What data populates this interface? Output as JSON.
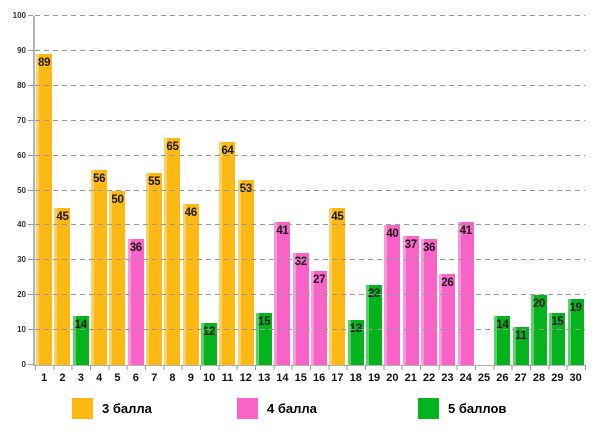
{
  "chart_data": {
    "type": "bar",
    "title": "",
    "xlabel": "",
    "ylabel": "",
    "ylim": [
      0,
      100
    ],
    "ytick_step": 10,
    "grid": "horizontal-dashed",
    "legend_position": "bottom",
    "legend": [
      {
        "key": "3",
        "label": "3 балла",
        "color": "#FCB813"
      },
      {
        "key": "4",
        "label": "4 балла",
        "color": "#F962C6"
      },
      {
        "key": "5",
        "label": "5 баллов",
        "color": "#05B41C"
      }
    ],
    "categories": [
      "1",
      "2",
      "3",
      "4",
      "5",
      "6",
      "7",
      "8",
      "9",
      "10",
      "11",
      "12",
      "13",
      "14",
      "15",
      "16",
      "17",
      "18",
      "19",
      "20",
      "21",
      "22",
      "23",
      "24",
      "25",
      "26",
      "27",
      "28",
      "29",
      "30"
    ],
    "points": [
      {
        "x": "1",
        "value": 89,
        "series": "3"
      },
      {
        "x": "2",
        "value": 45,
        "series": "3"
      },
      {
        "x": "3",
        "value": 14,
        "series": "5"
      },
      {
        "x": "4",
        "value": 56,
        "series": "3"
      },
      {
        "x": "5",
        "value": 50,
        "series": "3"
      },
      {
        "x": "6",
        "value": 36,
        "series": "4"
      },
      {
        "x": "7",
        "value": 55,
        "series": "3"
      },
      {
        "x": "8",
        "value": 65,
        "series": "3"
      },
      {
        "x": "9",
        "value": 46,
        "series": "3"
      },
      {
        "x": "10",
        "value": 12,
        "series": "5"
      },
      {
        "x": "11",
        "value": 64,
        "series": "3"
      },
      {
        "x": "12",
        "value": 53,
        "series": "3"
      },
      {
        "x": "13",
        "value": 15,
        "series": "5"
      },
      {
        "x": "14",
        "value": 41,
        "series": "4"
      },
      {
        "x": "15",
        "value": 32,
        "series": "4"
      },
      {
        "x": "16",
        "value": 27,
        "series": "4"
      },
      {
        "x": "17",
        "value": 45,
        "series": "3"
      },
      {
        "x": "18",
        "value": 13,
        "series": "5"
      },
      {
        "x": "19",
        "value": 23,
        "series": "5"
      },
      {
        "x": "20",
        "value": 40,
        "series": "4"
      },
      {
        "x": "21",
        "value": 37,
        "series": "4"
      },
      {
        "x": "22",
        "value": 36,
        "series": "4"
      },
      {
        "x": "23",
        "value": 26,
        "series": "4"
      },
      {
        "x": "24",
        "value": 41,
        "series": "4"
      },
      {
        "x": "25",
        "value": null,
        "series": null
      },
      {
        "x": "26",
        "value": 14,
        "series": "5"
      },
      {
        "x": "27",
        "value": 11,
        "series": "5"
      },
      {
        "x": "28",
        "value": 20,
        "series": "5"
      },
      {
        "x": "29",
        "value": 15,
        "series": "5"
      },
      {
        "x": "30",
        "value": 19,
        "series": "5"
      }
    ]
  }
}
